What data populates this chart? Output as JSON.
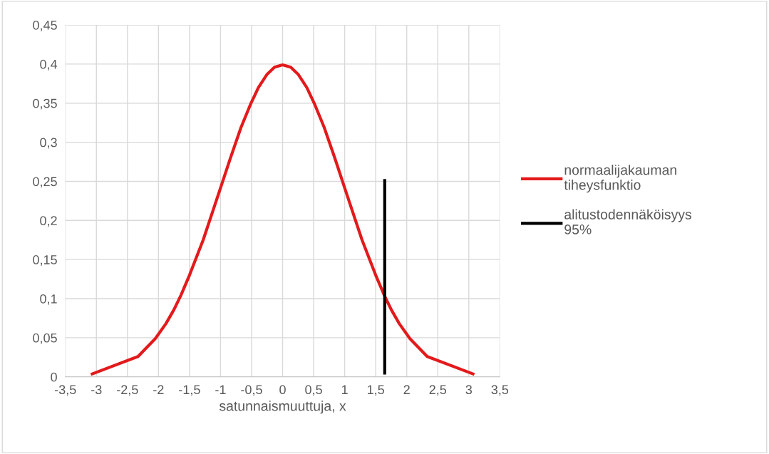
{
  "chart_data": {
    "type": "line",
    "xlabel": "satunnaismuuttuja, x",
    "xlim": [
      -3.5,
      3.5
    ],
    "xticks": [
      {
        "value": -3.5,
        "label": "-3,5"
      },
      {
        "value": -3,
        "label": "-3"
      },
      {
        "value": -2.5,
        "label": "-2,5"
      },
      {
        "value": -2,
        "label": "-2"
      },
      {
        "value": -1.5,
        "label": "-1,5"
      },
      {
        "value": -1,
        "label": "-1"
      },
      {
        "value": -0.5,
        "label": "-0,5"
      },
      {
        "value": 0,
        "label": "0"
      },
      {
        "value": 0.5,
        "label": "0,5"
      },
      {
        "value": 1,
        "label": "1"
      },
      {
        "value": 1.5,
        "label": "1,5"
      },
      {
        "value": 2,
        "label": "2"
      },
      {
        "value": 2.5,
        "label": "2,5"
      },
      {
        "value": 3,
        "label": "3"
      },
      {
        "value": 3.5,
        "label": "3,5"
      }
    ],
    "ylim": [
      0,
      0.45
    ],
    "yticks": [
      {
        "value": 0,
        "label": "0"
      },
      {
        "value": 0.05,
        "label": "0,05"
      },
      {
        "value": 0.1,
        "label": "0,1"
      },
      {
        "value": 0.15,
        "label": "0,15"
      },
      {
        "value": 0.2,
        "label": "0,2"
      },
      {
        "value": 0.25,
        "label": "0,25"
      },
      {
        "value": 0.3,
        "label": "0,3"
      },
      {
        "value": 0.35,
        "label": "0,35"
      },
      {
        "value": 0.4,
        "label": "0,4"
      },
      {
        "value": 0.45,
        "label": "0,45"
      }
    ],
    "grid": true,
    "legend": "right",
    "series": [
      {
        "name": "normaalijakauman tiheysfunktio",
        "color": "#e31a1c",
        "x": [
          -3.09,
          -2.33,
          -2.05,
          -1.88,
          -1.75,
          -1.64,
          -1.5,
          -1.28,
          -1.04,
          -0.84,
          -0.67,
          -0.52,
          -0.39,
          -0.25,
          -0.13,
          0,
          0.13,
          0.25,
          0.39,
          0.52,
          0.67,
          0.84,
          1.04,
          1.28,
          1.5,
          1.64,
          1.75,
          1.88,
          2.05,
          2.33,
          3.09
        ],
        "values": [
          0.003,
          0.026,
          0.049,
          0.068,
          0.086,
          0.104,
          0.13,
          0.175,
          0.232,
          0.28,
          0.319,
          0.348,
          0.37,
          0.387,
          0.396,
          0.399,
          0.396,
          0.387,
          0.37,
          0.348,
          0.319,
          0.28,
          0.232,
          0.175,
          0.13,
          0.104,
          0.086,
          0.068,
          0.049,
          0.026,
          0.003
        ]
      },
      {
        "name": "alitustodennäköisyys 95%",
        "color": "#000000",
        "x": [
          1.645,
          1.645
        ],
        "values": [
          0.003,
          0.253
        ]
      }
    ]
  }
}
